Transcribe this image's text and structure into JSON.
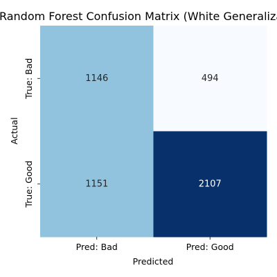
{
  "chart_data": {
    "type": "heatmap",
    "title": "Random Forest Confusion Matrix (White Generalization)",
    "xlabel": "Predicted",
    "ylabel": "Actual",
    "x_categories": [
      "Pred: Bad",
      "Pred: Good"
    ],
    "y_categories": [
      "True: Bad",
      "True: Good"
    ],
    "values": [
      [
        1146,
        494
      ],
      [
        1151,
        2107
      ]
    ],
    "colormap": "Blues",
    "colorbar": false,
    "grid": false,
    "cell_colors": {
      "low": "#f7fbff",
      "high": "#08306b",
      "mid_light": "#91c3de"
    },
    "annotation_colors": {
      "on_light": "#262626",
      "on_dark": "#ffffff"
    }
  }
}
